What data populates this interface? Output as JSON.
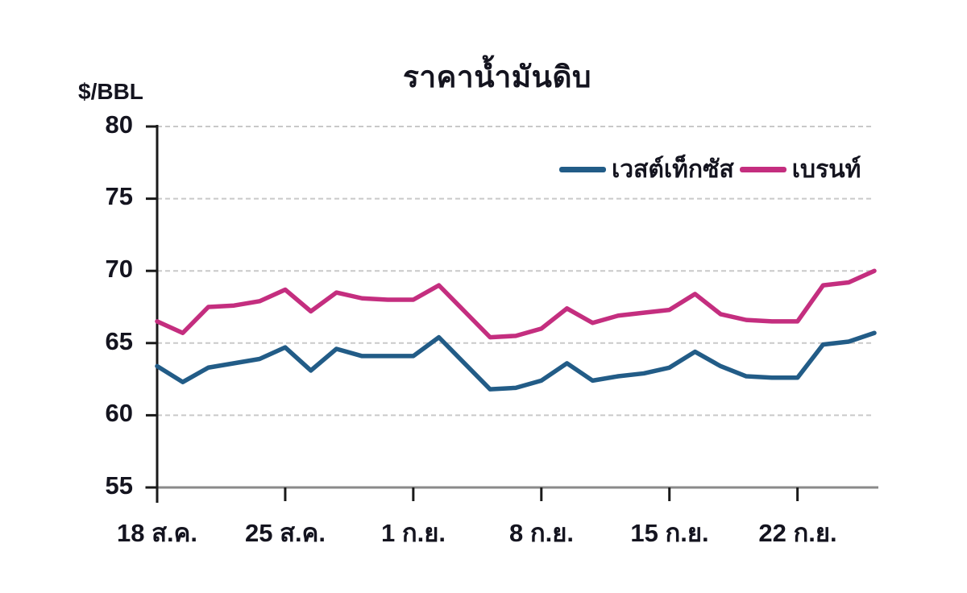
{
  "page": {
    "background": "#ffffff"
  },
  "header": {
    "title": "ราคาน้ำมันดิบ",
    "y_axis_unit": "$/BBL"
  },
  "chart_data": {
    "type": "line",
    "title": "ราคาน้ำมันดิบ",
    "ylabel": "$/BBL",
    "xlabel": "",
    "ylim": [
      55,
      80
    ],
    "yticks": [
      80,
      75,
      70,
      65,
      60,
      55
    ],
    "ytick_labels": [
      "80",
      "75",
      "70",
      "65",
      "60",
      "55"
    ],
    "xtick_labels": [
      "18 ส.ค.",
      "25 ส.ค.",
      "1 ก.ย.",
      "8 ก.ย.",
      "15 ก.ย.",
      "22 ก.ย."
    ],
    "xtick_point_indices": [
      0,
      5,
      10,
      15,
      20,
      25
    ],
    "grid": "horizontal-dashed",
    "grid_color": "#c9c9c9",
    "axis_color": "#1a1a1a",
    "baseline_color": "#8a8a8a",
    "legend_position": "top-right-inside",
    "num_points": 29,
    "series": [
      {
        "name": "เวสต์เท็กซัส",
        "color": "#225C87",
        "values": [
          63.4,
          62.3,
          63.3,
          63.6,
          63.9,
          64.7,
          63.1,
          64.6,
          64.1,
          64.1,
          64.1,
          65.4,
          63.6,
          61.8,
          61.9,
          62.4,
          63.6,
          62.4,
          62.7,
          62.9,
          63.3,
          64.4,
          63.4,
          62.7,
          62.6,
          62.6,
          64.9,
          65.1,
          65.7
        ]
      },
      {
        "name": "เบรนท์",
        "color": "#C42E7F",
        "values": [
          66.5,
          65.7,
          67.5,
          67.6,
          67.9,
          68.7,
          67.2,
          68.5,
          68.1,
          68.0,
          68.0,
          69.0,
          67.2,
          65.4,
          65.5,
          66.0,
          67.4,
          66.4,
          66.9,
          67.1,
          67.3,
          68.4,
          67.0,
          66.6,
          66.5,
          66.5,
          69.0,
          69.2,
          70.0
        ]
      }
    ]
  }
}
